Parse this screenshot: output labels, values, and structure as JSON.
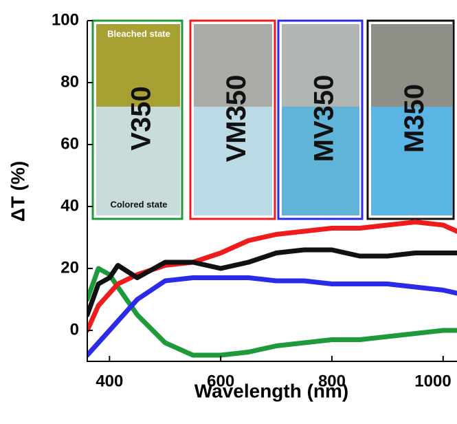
{
  "chart_data": {
    "type": "line",
    "x_label": "Wavelength (nm)",
    "y_label": "ΔT (%)",
    "x": [
      360,
      380,
      400,
      415,
      450,
      500,
      550,
      600,
      650,
      700,
      750,
      800,
      850,
      900,
      950,
      1000,
      1025
    ],
    "series": [
      {
        "name": "V350",
        "color": "#1f9a3a",
        "values": [
          10,
          20,
          18,
          14,
          5,
          -4,
          -8,
          -8,
          -7,
          -5,
          -4,
          -3,
          -3,
          -2,
          -1,
          0,
          0
        ]
      },
      {
        "name": "VM350",
        "color": "#ee1c1c",
        "values": [
          0,
          8,
          12,
          15,
          18,
          21,
          22,
          25,
          29,
          31,
          32,
          33,
          33,
          34,
          35,
          34,
          32
        ]
      },
      {
        "name": "MV350",
        "color": "#2a2ae8",
        "values": [
          -8,
          -4,
          0,
          3,
          10,
          16,
          17,
          17,
          17,
          16,
          16,
          15,
          15,
          15,
          14,
          13,
          12
        ]
      },
      {
        "name": "M350",
        "color": "#111111",
        "values": [
          5,
          15,
          17,
          21,
          17,
          22,
          22,
          20,
          22,
          25,
          26,
          26,
          24,
          24,
          25,
          25,
          25
        ]
      }
    ],
    "xlim": [
      360,
      1025
    ],
    "ylim": [
      -10,
      100
    ],
    "xticks": [
      400,
      600,
      800,
      1000
    ],
    "yticks": [
      0,
      20,
      40,
      60,
      80,
      100
    ],
    "annotations": [
      "Bleached state",
      "Colored state"
    ]
  }
}
